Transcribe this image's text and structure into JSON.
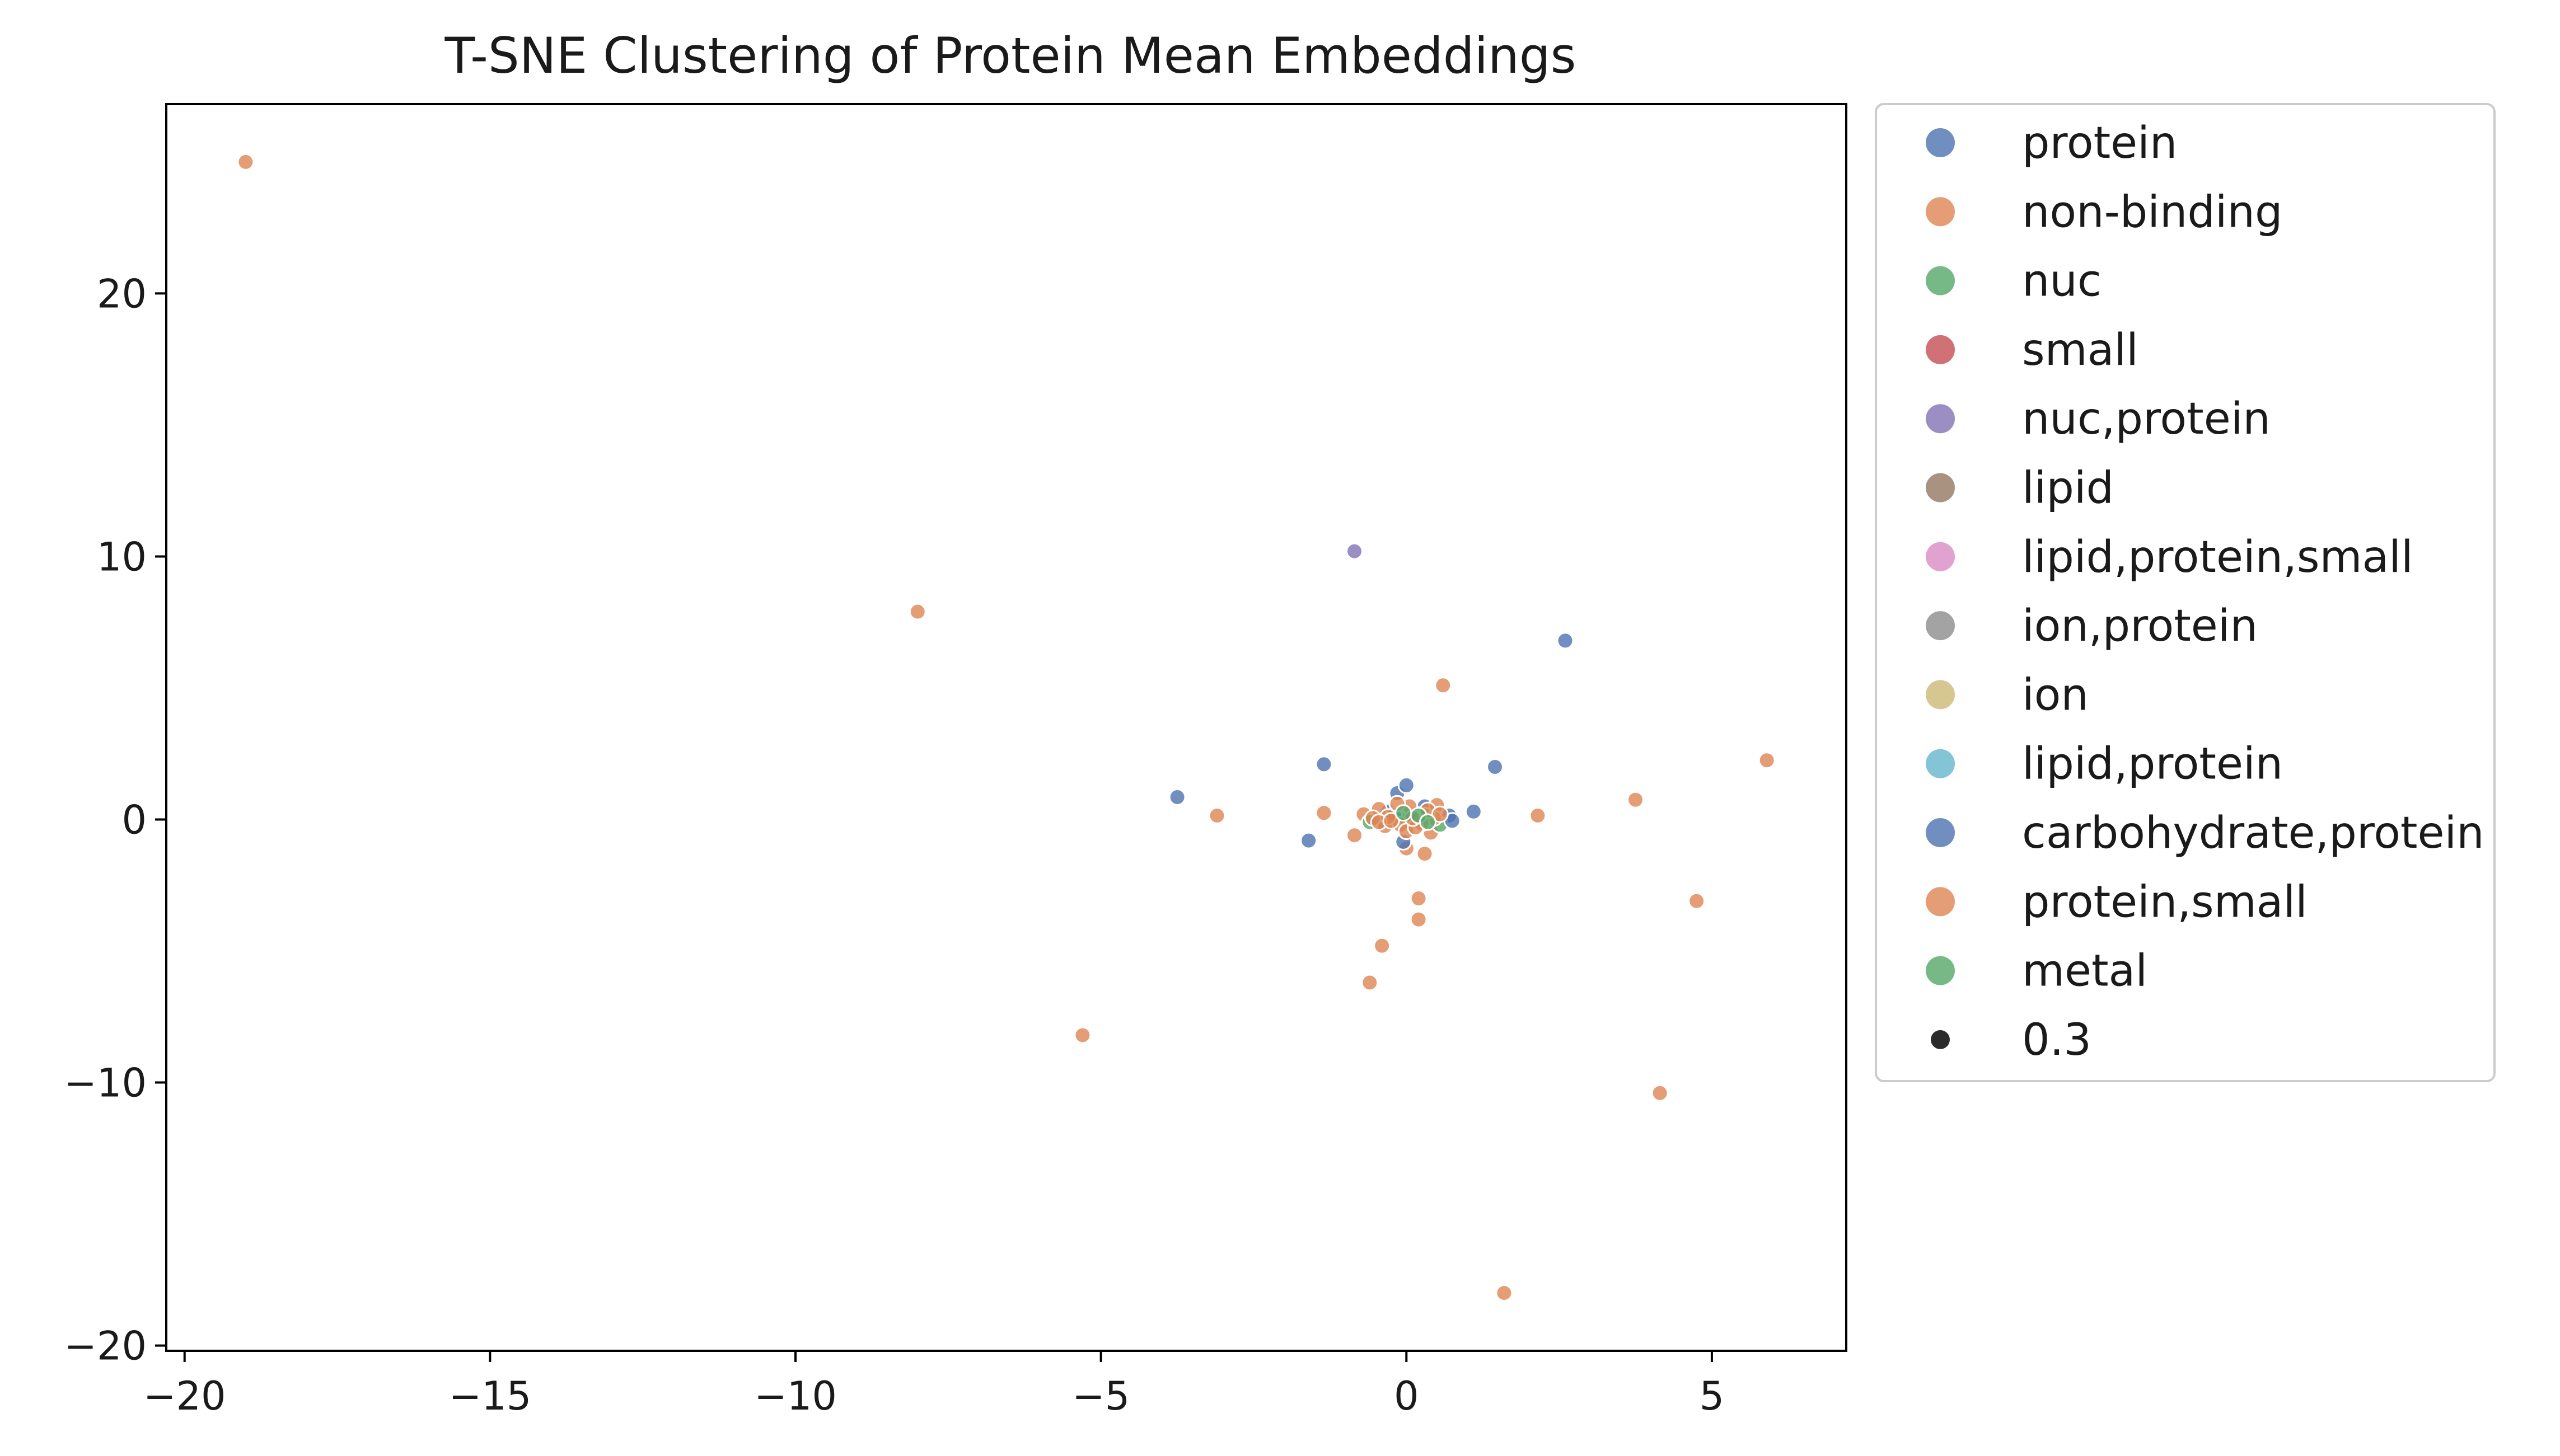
{
  "chart_data": {
    "type": "scatter",
    "title": "T-SNE Clustering of Protein Mean Embeddings",
    "xlabel": "",
    "ylabel": "",
    "xlim": [
      -20.3,
      7.2
    ],
    "ylim": [
      -20.2,
      27.2
    ],
    "x_ticks": [
      -20,
      -15,
      -10,
      -5,
      0,
      5
    ],
    "y_ticks": [
      -20,
      -10,
      0,
      10,
      20
    ],
    "x_tick_labels": [
      "−20",
      "−15",
      "−10",
      "−5",
      "0",
      "5"
    ],
    "y_tick_labels": [
      "−20",
      "−10",
      "0",
      "10",
      "20"
    ],
    "grid": false,
    "legend_position": "outside-right",
    "point_alpha": 0.8,
    "series": [
      {
        "name": "protein",
        "color": "#4C72B0",
        "points": [
          [
            2.6,
            6.8
          ],
          [
            1.45,
            2.0
          ],
          [
            -1.35,
            2.1
          ],
          [
            -3.75,
            0.85
          ],
          [
            -1.6,
            -0.8
          ],
          [
            1.1,
            0.3
          ],
          [
            -0.15,
            1.0
          ],
          [
            0.0,
            1.3
          ],
          [
            0.7,
            0.15
          ],
          [
            -0.5,
            -0.1
          ],
          [
            0.3,
            0.5
          ],
          [
            -0.3,
            0.3
          ]
        ]
      },
      {
        "name": "non-binding",
        "color": "#DD8452",
        "points": [
          [
            -19.0,
            25.0
          ],
          [
            -8.0,
            7.9
          ],
          [
            0.6,
            5.1
          ],
          [
            5.9,
            2.25
          ],
          [
            3.75,
            0.75
          ],
          [
            2.15,
            0.15
          ],
          [
            -3.1,
            0.15
          ],
          [
            -1.35,
            0.25
          ],
          [
            -0.85,
            -0.6
          ],
          [
            -0.45,
            0.4
          ],
          [
            0.4,
            -0.5
          ],
          [
            0.3,
            -1.3
          ],
          [
            0.2,
            -3.0
          ],
          [
            0.2,
            -3.8
          ],
          [
            -0.4,
            -4.8
          ],
          [
            -0.6,
            -6.2
          ],
          [
            -5.3,
            -8.2
          ],
          [
            4.75,
            -3.1
          ],
          [
            4.15,
            -10.4
          ],
          [
            1.6,
            -18.0
          ],
          [
            0.5,
            0.55
          ],
          [
            -0.7,
            0.2
          ],
          [
            0.0,
            -1.1
          ],
          [
            -0.2,
            0.0
          ],
          [
            0.15,
            0.2
          ]
        ]
      },
      {
        "name": "nuc",
        "color": "#55A868",
        "points": [
          [
            -0.6,
            -0.1
          ],
          [
            0.3,
            0.15
          ],
          [
            0.55,
            -0.2
          ],
          [
            0.0,
            0.0
          ]
        ]
      },
      {
        "name": "small",
        "color": "#C44E52",
        "points": []
      },
      {
        "name": "nuc,protein",
        "color": "#8172B3",
        "points": [
          [
            -0.85,
            10.2
          ]
        ]
      },
      {
        "name": "lipid",
        "color": "#937860",
        "points": []
      },
      {
        "name": "lipid,protein,small",
        "color": "#DA8BC3",
        "points": []
      },
      {
        "name": "ion,protein",
        "color": "#8C8C8C",
        "points": []
      },
      {
        "name": "ion",
        "color": "#CCB974",
        "points": []
      },
      {
        "name": "lipid,protein",
        "color": "#64B5CD",
        "points": []
      },
      {
        "name": "carbohydrate,protein",
        "color": "#4C72B0",
        "points": [
          [
            0.75,
            -0.05
          ],
          [
            -0.05,
            -0.85
          ],
          [
            0.1,
            0.1
          ],
          [
            -0.2,
            0.15
          ]
        ]
      },
      {
        "name": "protein,small",
        "color": "#DD8452",
        "points": [
          [
            0.45,
            0.05
          ],
          [
            -0.1,
            -0.2
          ],
          [
            -0.35,
            -0.25
          ],
          [
            0.25,
            -0.15
          ],
          [
            -0.55,
            0.05
          ],
          [
            0.05,
            0.5
          ],
          [
            -0.15,
            0.6
          ],
          [
            0.35,
            0.35
          ],
          [
            -0.3,
            0.1
          ],
          [
            0.0,
            -0.45
          ],
          [
            0.15,
            -0.3
          ],
          [
            -0.45,
            -0.1
          ],
          [
            0.55,
            0.2
          ],
          [
            -0.25,
            -0.05
          ],
          [
            0.1,
            0.05
          ]
        ]
      },
      {
        "name": "metal",
        "color": "#55A868",
        "points": [
          [
            0.2,
            0.15
          ],
          [
            -0.05,
            0.25
          ],
          [
            0.35,
            -0.1
          ]
        ]
      }
    ],
    "size_legend": {
      "label": "0.3",
      "color": "#2b2b2b"
    }
  }
}
